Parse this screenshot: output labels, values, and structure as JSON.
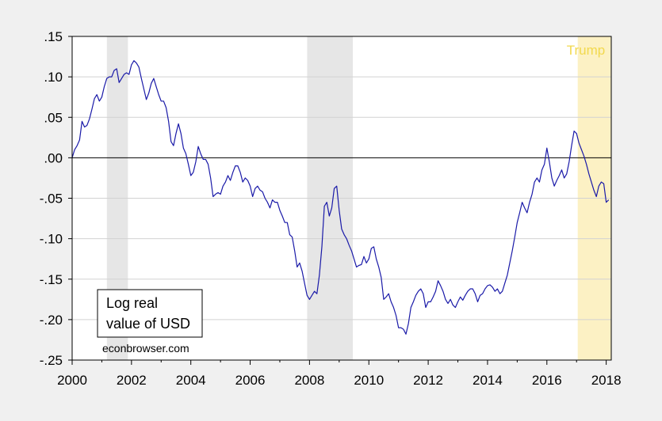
{
  "chart_data": {
    "type": "line",
    "title": "",
    "xlabel": "",
    "ylabel": "",
    "xlim": [
      2000.0,
      2018.17
    ],
    "ylim": [
      -0.25,
      0.15
    ],
    "x_ticks": [
      {
        "value": 2000,
        "label": "2000"
      },
      {
        "value": 2002,
        "label": "2002"
      },
      {
        "value": 2004,
        "label": "2004"
      },
      {
        "value": 2006,
        "label": "2006"
      },
      {
        "value": 2008,
        "label": "2008"
      },
      {
        "value": 2010,
        "label": "2010"
      },
      {
        "value": 2012,
        "label": "2012"
      },
      {
        "value": 2014,
        "label": "2014"
      },
      {
        "value": 2016,
        "label": "2016"
      },
      {
        "value": 2018,
        "label": "2018"
      }
    ],
    "y_ticks": [
      {
        "value": 0.15,
        "label": ".15"
      },
      {
        "value": 0.1,
        "label": ".10"
      },
      {
        "value": 0.05,
        "label": ".05"
      },
      {
        "value": 0.0,
        "label": ".00"
      },
      {
        "value": -0.05,
        "label": "-.05"
      },
      {
        "value": -0.1,
        "label": "-.10"
      },
      {
        "value": -0.15,
        "label": "-.15"
      },
      {
        "value": -0.2,
        "label": "-.20"
      },
      {
        "value": -0.25,
        "label": "-.25"
      }
    ],
    "grid": true,
    "zero_line": true,
    "colors": {
      "line": "#1a1aa8",
      "recession_shade": "#e6e6e6",
      "trump_shade": "#fcf1c4",
      "trump_text": "#f2d94e",
      "plot_bg": "#ffffff",
      "grid": "#d2d2d2"
    },
    "shaded_periods": [
      {
        "start": 2001.17,
        "end": 2001.88,
        "kind": "recession",
        "label": ""
      },
      {
        "start": 2007.92,
        "end": 2009.46,
        "kind": "recession",
        "label": ""
      },
      {
        "start": 2017.04,
        "end": 2018.17,
        "kind": "trump",
        "label": "Trump"
      }
    ],
    "legend": {
      "lines": [
        "Log real",
        "value of USD"
      ],
      "placement": "bottom-left"
    },
    "credit": "econbrowser.com",
    "series": [
      {
        "name": "Log real value of USD",
        "x": [
          2000.0,
          2000.083,
          2000.167,
          2000.25,
          2000.333,
          2000.417,
          2000.5,
          2000.583,
          2000.667,
          2000.75,
          2000.833,
          2000.917,
          2001.0,
          2001.083,
          2001.167,
          2001.25,
          2001.333,
          2001.417,
          2001.5,
          2001.583,
          2001.667,
          2001.75,
          2001.833,
          2001.917,
          2002.0,
          2002.083,
          2002.167,
          2002.25,
          2002.333,
          2002.417,
          2002.5,
          2002.583,
          2002.667,
          2002.75,
          2002.833,
          2002.917,
          2003.0,
          2003.083,
          2003.167,
          2003.25,
          2003.333,
          2003.417,
          2003.5,
          2003.583,
          2003.667,
          2003.75,
          2003.833,
          2003.917,
          2004.0,
          2004.083,
          2004.167,
          2004.25,
          2004.333,
          2004.417,
          2004.5,
          2004.583,
          2004.667,
          2004.75,
          2004.833,
          2004.917,
          2005.0,
          2005.083,
          2005.167,
          2005.25,
          2005.333,
          2005.417,
          2005.5,
          2005.583,
          2005.667,
          2005.75,
          2005.833,
          2005.917,
          2006.0,
          2006.083,
          2006.167,
          2006.25,
          2006.333,
          2006.417,
          2006.5,
          2006.583,
          2006.667,
          2006.75,
          2006.833,
          2006.917,
          2007.0,
          2007.083,
          2007.167,
          2007.25,
          2007.333,
          2007.417,
          2007.5,
          2007.583,
          2007.667,
          2007.75,
          2007.833,
          2007.917,
          2008.0,
          2008.083,
          2008.167,
          2008.25,
          2008.333,
          2008.417,
          2008.5,
          2008.583,
          2008.667,
          2008.75,
          2008.833,
          2008.917,
          2009.0,
          2009.083,
          2009.167,
          2009.25,
          2009.333,
          2009.417,
          2009.5,
          2009.583,
          2009.667,
          2009.75,
          2009.833,
          2009.917,
          2010.0,
          2010.083,
          2010.167,
          2010.25,
          2010.333,
          2010.417,
          2010.5,
          2010.583,
          2010.667,
          2010.75,
          2010.833,
          2010.917,
          2011.0,
          2011.083,
          2011.167,
          2011.25,
          2011.333,
          2011.417,
          2011.5,
          2011.583,
          2011.667,
          2011.75,
          2011.833,
          2011.917,
          2012.0,
          2012.083,
          2012.167,
          2012.25,
          2012.333,
          2012.417,
          2012.5,
          2012.583,
          2012.667,
          2012.75,
          2012.833,
          2012.917,
          2013.0,
          2013.083,
          2013.167,
          2013.25,
          2013.333,
          2013.417,
          2013.5,
          2013.583,
          2013.667,
          2013.75,
          2013.833,
          2013.917,
          2014.0,
          2014.083,
          2014.167,
          2014.25,
          2014.333,
          2014.417,
          2014.5,
          2014.583,
          2014.667,
          2014.75,
          2014.833,
          2014.917,
          2015.0,
          2015.083,
          2015.167,
          2015.25,
          2015.333,
          2015.417,
          2015.5,
          2015.583,
          2015.667,
          2015.75,
          2015.833,
          2015.917,
          2016.0,
          2016.083,
          2016.167,
          2016.25,
          2016.333,
          2016.417,
          2016.5,
          2016.583,
          2016.667,
          2016.75,
          2016.833,
          2016.917,
          2017.0,
          2017.083,
          2017.167,
          2017.25,
          2017.333,
          2017.417,
          2017.5,
          2017.583,
          2017.667,
          2017.75,
          2017.833,
          2017.917,
          2018.0,
          2018.083
        ],
        "values": [
          0.0,
          0.01,
          0.015,
          0.022,
          0.045,
          0.038,
          0.04,
          0.048,
          0.06,
          0.073,
          0.078,
          0.07,
          0.075,
          0.088,
          0.098,
          0.1,
          0.1,
          0.108,
          0.11,
          0.093,
          0.098,
          0.103,
          0.105,
          0.103,
          0.115,
          0.12,
          0.117,
          0.112,
          0.098,
          0.085,
          0.072,
          0.08,
          0.092,
          0.098,
          0.088,
          0.078,
          0.07,
          0.07,
          0.062,
          0.045,
          0.02,
          0.015,
          0.03,
          0.042,
          0.03,
          0.012,
          0.005,
          -0.008,
          -0.022,
          -0.018,
          -0.005,
          0.014,
          0.005,
          -0.002,
          -0.002,
          -0.008,
          -0.025,
          -0.048,
          -0.045,
          -0.043,
          -0.045,
          -0.035,
          -0.03,
          -0.022,
          -0.028,
          -0.018,
          -0.01,
          -0.01,
          -0.018,
          -0.03,
          -0.025,
          -0.028,
          -0.035,
          -0.048,
          -0.038,
          -0.035,
          -0.04,
          -0.042,
          -0.05,
          -0.055,
          -0.062,
          -0.052,
          -0.055,
          -0.055,
          -0.065,
          -0.072,
          -0.08,
          -0.08,
          -0.095,
          -0.098,
          -0.115,
          -0.135,
          -0.13,
          -0.14,
          -0.155,
          -0.17,
          -0.175,
          -0.17,
          -0.165,
          -0.168,
          -0.145,
          -0.11,
          -0.06,
          -0.055,
          -0.072,
          -0.062,
          -0.038,
          -0.035,
          -0.065,
          -0.088,
          -0.095,
          -0.1,
          -0.108,
          -0.115,
          -0.125,
          -0.135,
          -0.133,
          -0.132,
          -0.122,
          -0.13,
          -0.125,
          -0.112,
          -0.11,
          -0.125,
          -0.135,
          -0.148,
          -0.175,
          -0.172,
          -0.168,
          -0.178,
          -0.185,
          -0.195,
          -0.21,
          -0.21,
          -0.212,
          -0.218,
          -0.205,
          -0.185,
          -0.178,
          -0.17,
          -0.165,
          -0.162,
          -0.168,
          -0.185,
          -0.178,
          -0.178,
          -0.172,
          -0.165,
          -0.152,
          -0.158,
          -0.165,
          -0.175,
          -0.18,
          -0.175,
          -0.182,
          -0.185,
          -0.178,
          -0.172,
          -0.176,
          -0.17,
          -0.165,
          -0.162,
          -0.162,
          -0.168,
          -0.178,
          -0.17,
          -0.168,
          -0.162,
          -0.158,
          -0.157,
          -0.16,
          -0.165,
          -0.162,
          -0.168,
          -0.165,
          -0.155,
          -0.145,
          -0.13,
          -0.115,
          -0.098,
          -0.08,
          -0.068,
          -0.055,
          -0.062,
          -0.068,
          -0.055,
          -0.045,
          -0.03,
          -0.025,
          -0.03,
          -0.015,
          -0.008,
          0.012,
          -0.005,
          -0.025,
          -0.035,
          -0.028,
          -0.022,
          -0.015,
          -0.025,
          -0.02,
          -0.005,
          0.015,
          0.033,
          0.03,
          0.018,
          0.01,
          0.002,
          -0.008,
          -0.02,
          -0.03,
          -0.04,
          -0.048,
          -0.035,
          -0.03,
          -0.032,
          -0.055,
          -0.052
        ]
      }
    ]
  }
}
